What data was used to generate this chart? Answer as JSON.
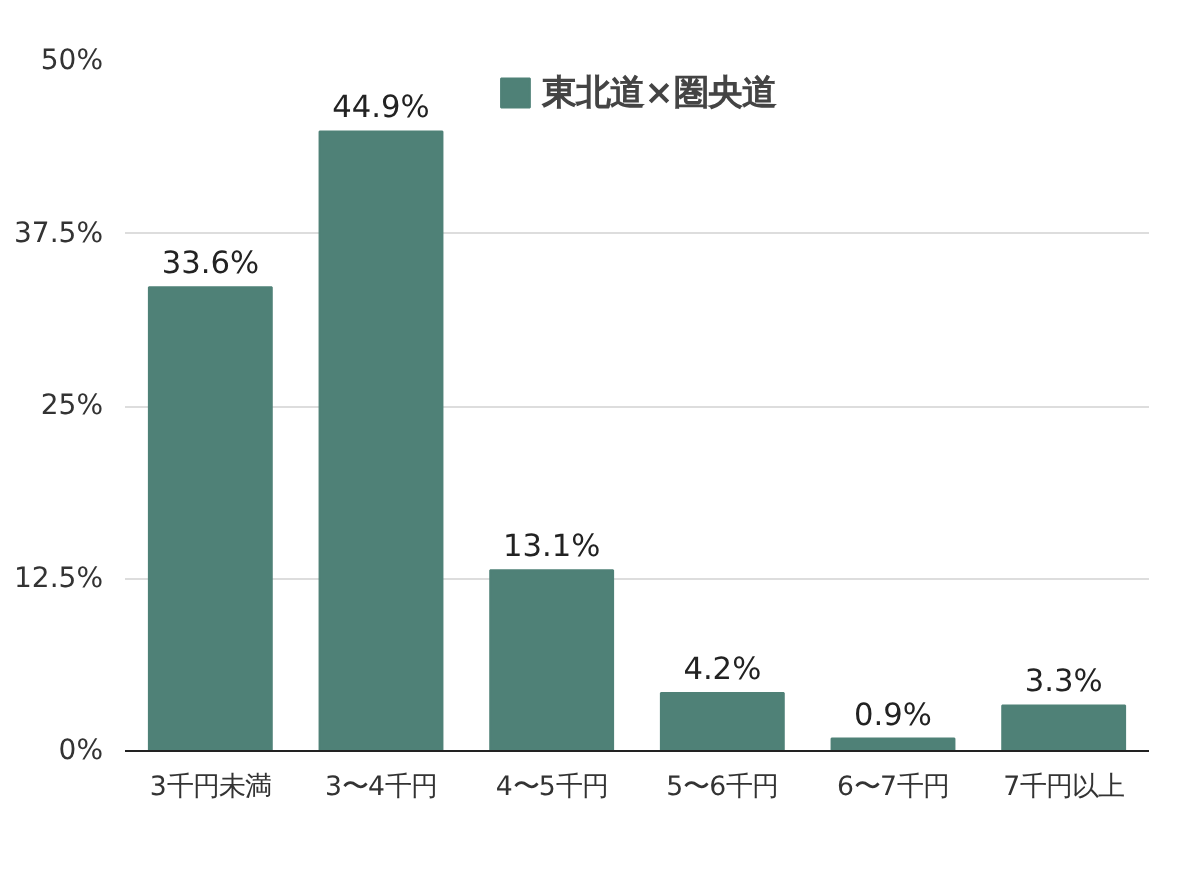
{
  "chart_data": {
    "type": "bar",
    "categories": [
      "3千円未満",
      "3〜4千円",
      "4〜5千円",
      "5〜6千円",
      "6〜7千円",
      "7千円以上"
    ],
    "series": [
      {
        "name": "東北道×圏央道",
        "color": "#4f8177",
        "values": [
          33.6,
          44.9,
          13.1,
          4.2,
          0.9,
          3.3
        ],
        "value_labels": [
          "33.6%",
          "44.9%",
          "13.1%",
          "4.2%",
          "0.9%",
          "3.3%"
        ]
      }
    ],
    "ylim": [
      0,
      50
    ],
    "yticks": [
      {
        "value": 0,
        "label": "0%"
      },
      {
        "value": 12.5,
        "label": "12.5%"
      },
      {
        "value": 25,
        "label": "25%"
      },
      {
        "value": 37.5,
        "label": "37.5%"
      },
      {
        "value": 50,
        "label": "50%"
      }
    ],
    "grid": "y",
    "legend": "top"
  }
}
